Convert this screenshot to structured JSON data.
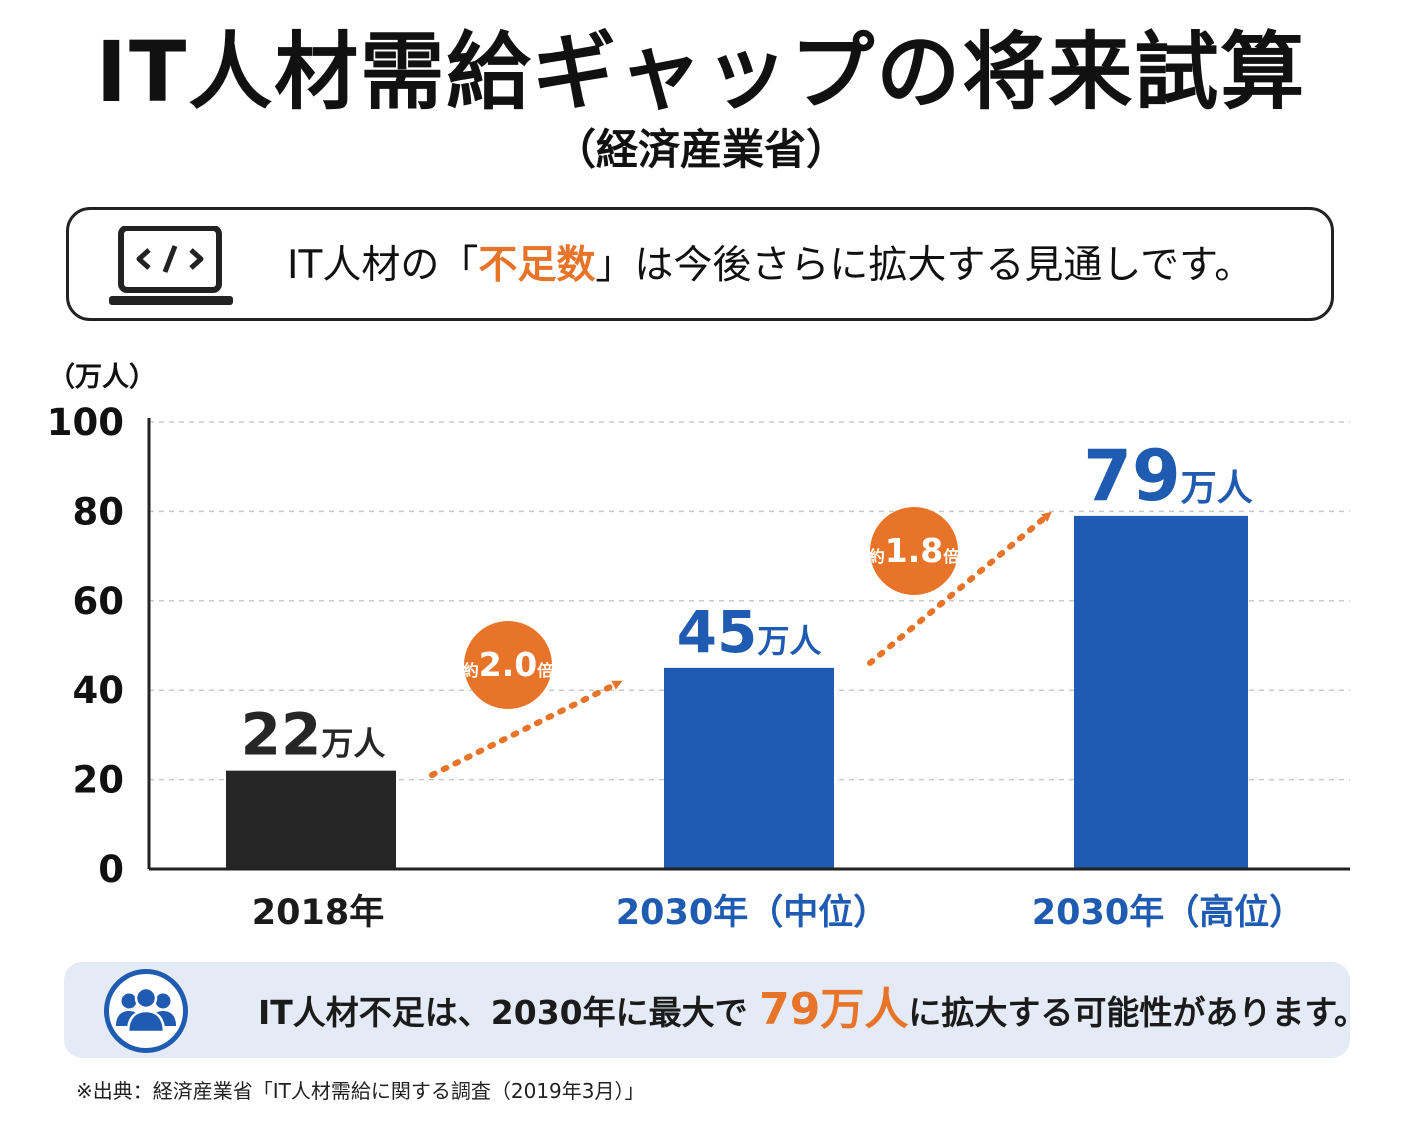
{
  "header": {
    "title": "IT人材需給ギャップの将来試算",
    "subtitle": "（経済産業省）"
  },
  "message": {
    "icon": "laptop-code-icon",
    "prefix": "IT人材の「",
    "highlight": "不足数",
    "suffix": "」は今後さらに拡大する見通しです。"
  },
  "chart_data": {
    "type": "bar",
    "unit_label": "（万人）",
    "ylim": [
      0,
      100
    ],
    "yticks": [
      "0",
      "20",
      "40",
      "60",
      "80",
      "100"
    ],
    "grid": true,
    "categories": [
      "2018年",
      "2030年（中位）",
      "2030年（高位）"
    ],
    "values": [
      22,
      45,
      79
    ],
    "value_labels": [
      {
        "number": "22",
        "unit": "万人"
      },
      {
        "number": "45",
        "unit": "万人"
      },
      {
        "number": "79",
        "unit": "万人"
      }
    ],
    "annotations": [
      {
        "prefix": "約",
        "value": "2.0",
        "suffix": "倍"
      },
      {
        "prefix": "約",
        "value": "1.8",
        "suffix": "倍"
      }
    ]
  },
  "colors": {
    "bar_2018": "#262626",
    "bar_2030": "#1f5bb0",
    "accent_orange": "#e8742a",
    "category_2018": "#1b1b1b",
    "category_2030": "#1f5bb0"
  },
  "note": {
    "icon": "people-group-icon",
    "prefix": "IT人材不足は、2030年に最大で ",
    "highlight": "79万人",
    "suffix": "に拡大する可能性があります。"
  },
  "source": "※出典：経済産業省「IT人材需給に関する調査（2019年3月）」"
}
